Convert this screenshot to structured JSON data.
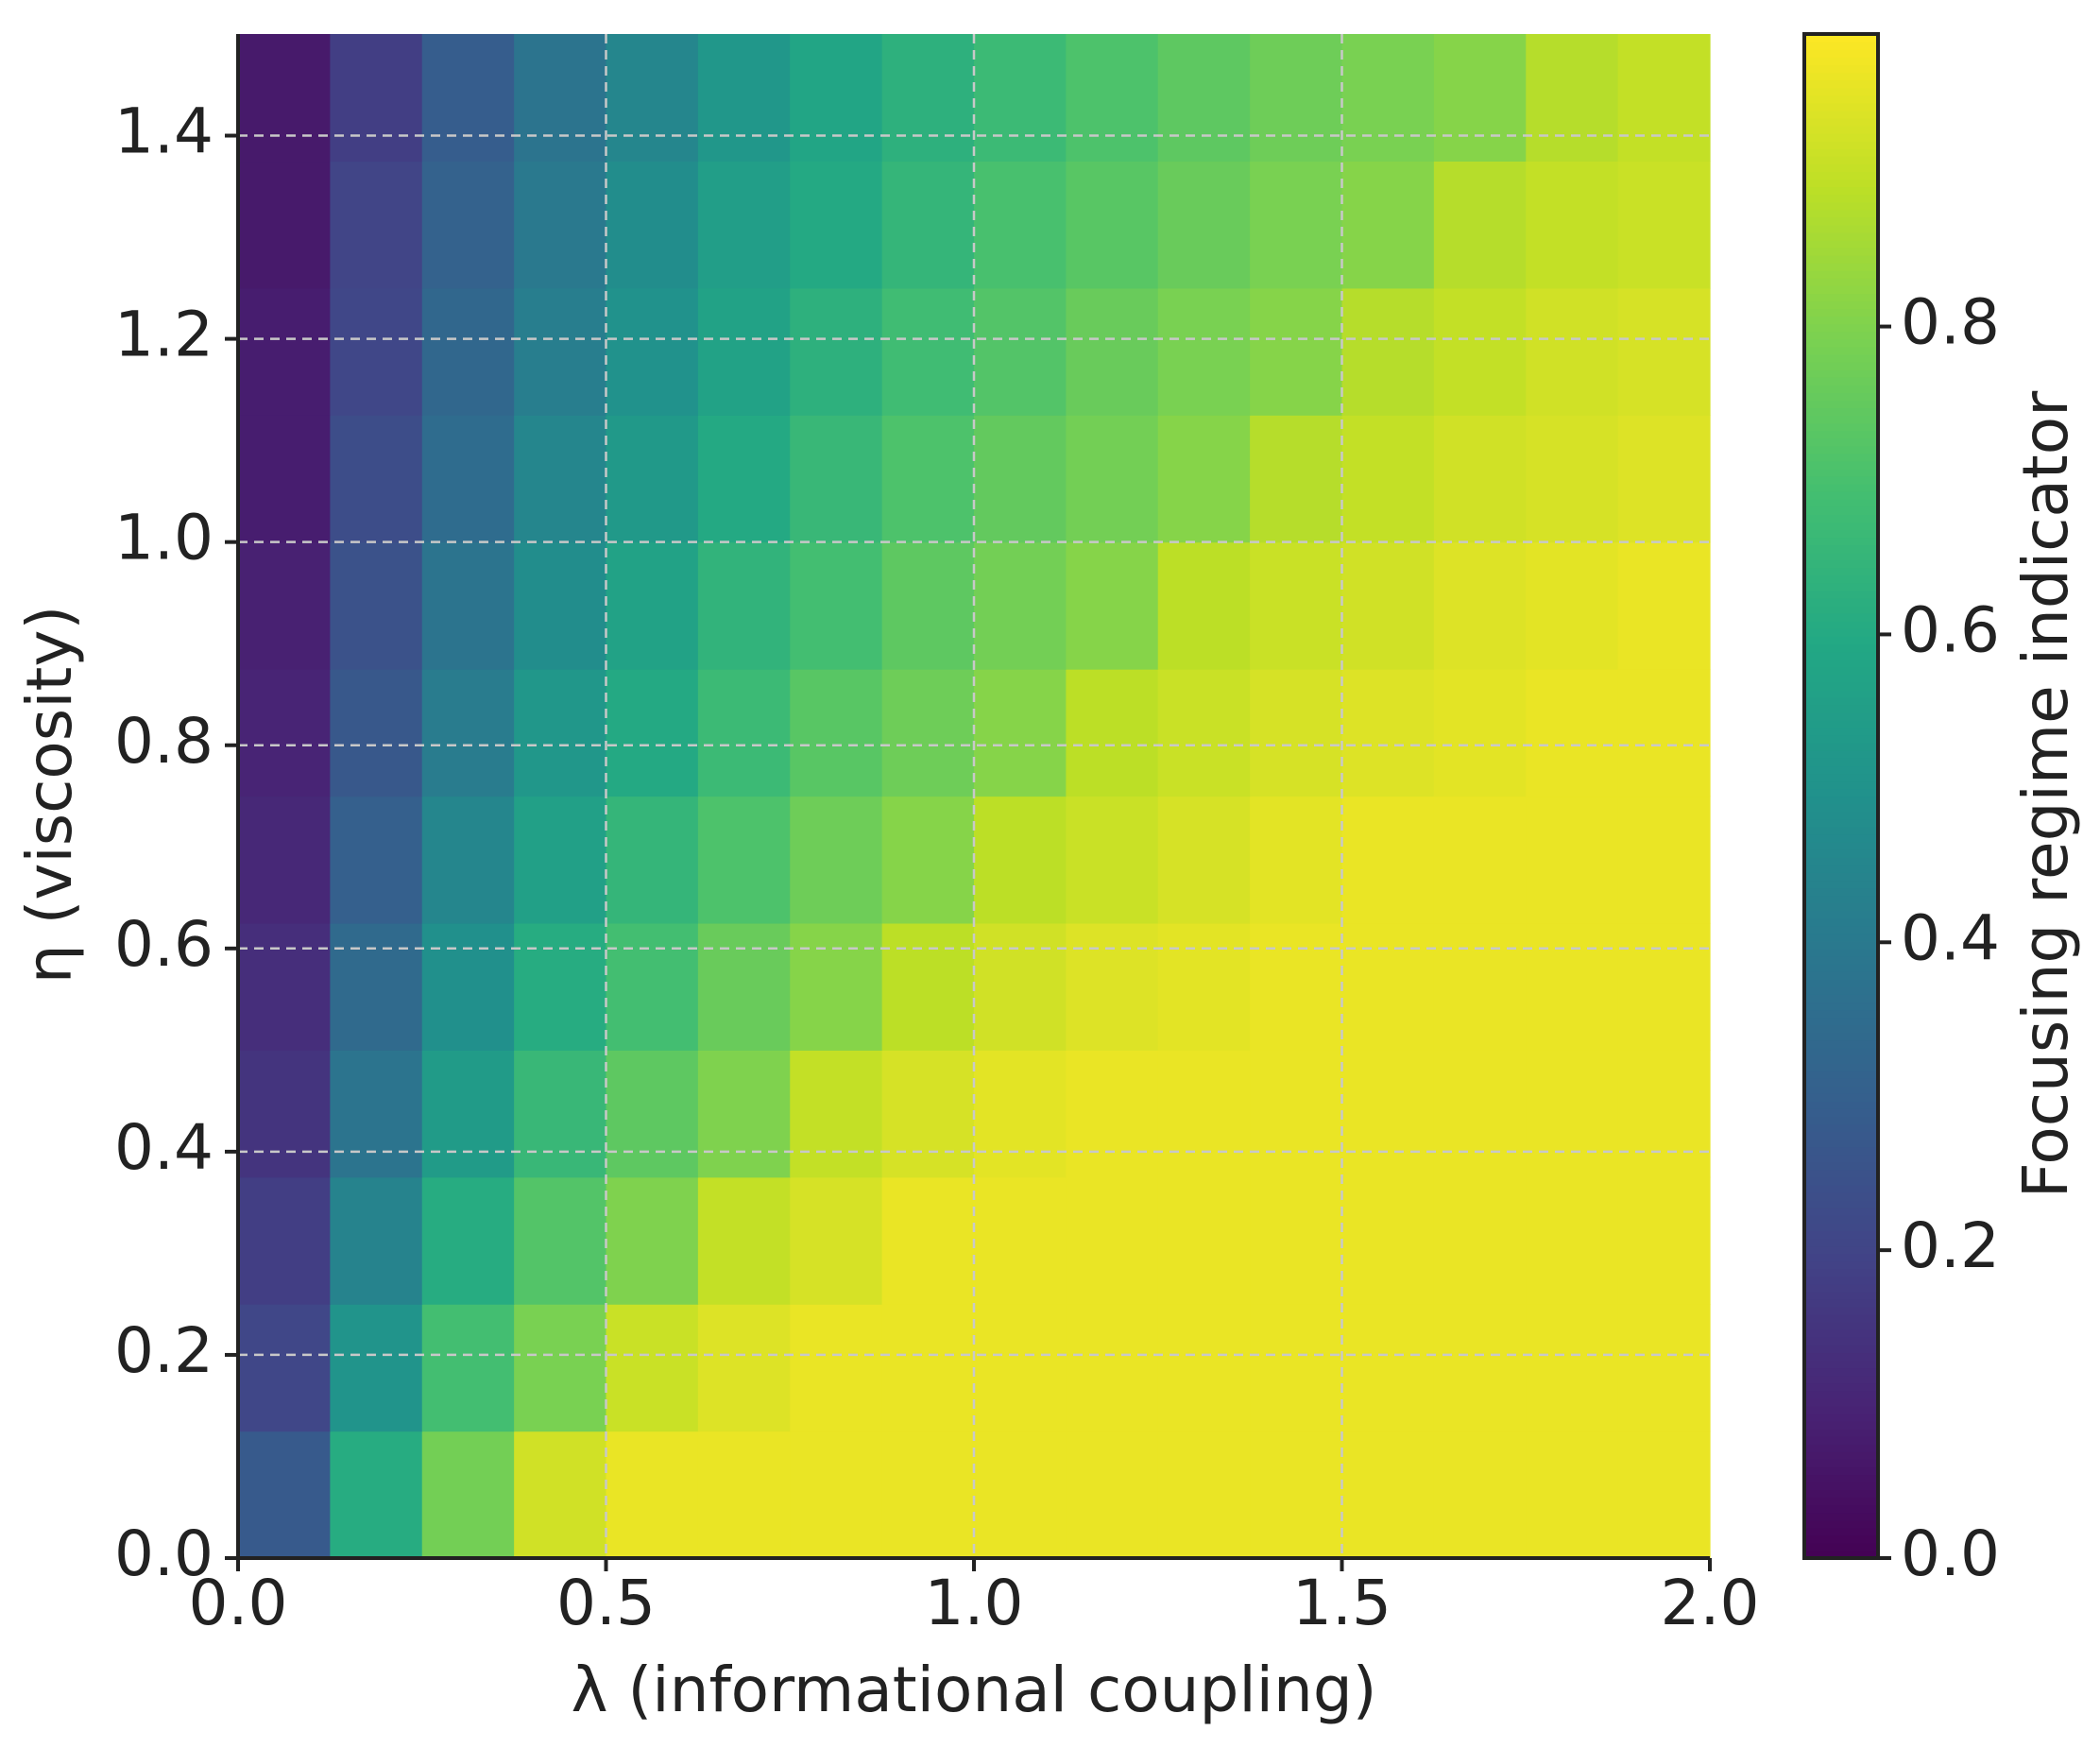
{
  "chart_data": {
    "type": "heatmap",
    "x_label": "λ (informational coupling)",
    "y_label": "η (viscosity)",
    "colorbar_label": "Focusing regime indicator",
    "colormap": "viridis",
    "clim": [
      0,
      0.99
    ],
    "xlim": [
      0,
      2
    ],
    "ylim": [
      0,
      1.5
    ],
    "xticks": [
      {
        "value": 0,
        "label": "0.0"
      },
      0.5,
      {
        "value": 1,
        "label": "1.0"
      },
      1.5,
      {
        "value": 2,
        "label": "2.0"
      }
    ],
    "yticks": [
      {
        "value": 0,
        "label": "0.0"
      },
      0.2,
      0.4,
      0.6,
      0.8,
      {
        "value": 1,
        "label": "1.0"
      },
      1.2,
      1.4
    ],
    "cticks": [
      {
        "value": 0,
        "label": "0.0"
      },
      0.2,
      0.4,
      0.6,
      0.8
    ],
    "grid": true,
    "x": [
      0.0625,
      0.1875,
      0.3125,
      0.4375,
      0.5625,
      0.6875,
      0.8125,
      0.9375,
      1.0625,
      1.1875,
      1.3125,
      1.4375,
      1.5625,
      1.6875,
      1.8125,
      1.9375
    ],
    "y": [
      0.0625,
      0.1875,
      0.3125,
      0.4375,
      0.5625,
      0.6875,
      0.8125,
      0.9375,
      1.0625,
      1.1875,
      1.3125,
      1.4375
    ],
    "z": [
      [
        0.28,
        0.61,
        0.78,
        0.92,
        0.96,
        0.96,
        0.96,
        0.96,
        0.96,
        0.96,
        0.96,
        0.96,
        0.96,
        0.96,
        0.96,
        0.96
      ],
      [
        0.21,
        0.51,
        0.69,
        0.79,
        0.91,
        0.94,
        0.96,
        0.96,
        0.96,
        0.96,
        0.96,
        0.96,
        0.96,
        0.96,
        0.96,
        0.96
      ],
      [
        0.18,
        0.44,
        0.61,
        0.72,
        0.8,
        0.9,
        0.93,
        0.96,
        0.96,
        0.96,
        0.96,
        0.96,
        0.96,
        0.96,
        0.96,
        0.96
      ],
      [
        0.15,
        0.38,
        0.54,
        0.66,
        0.74,
        0.8,
        0.9,
        0.93,
        0.95,
        0.96,
        0.96,
        0.96,
        0.96,
        0.96,
        0.96,
        0.96
      ],
      [
        0.13,
        0.34,
        0.49,
        0.61,
        0.69,
        0.76,
        0.81,
        0.89,
        0.92,
        0.94,
        0.95,
        0.96,
        0.96,
        0.96,
        0.96,
        0.96
      ],
      [
        0.11,
        0.3,
        0.45,
        0.56,
        0.65,
        0.71,
        0.77,
        0.81,
        0.89,
        0.91,
        0.93,
        0.95,
        0.96,
        0.96,
        0.96,
        0.96
      ],
      [
        0.1,
        0.27,
        0.41,
        0.52,
        0.6,
        0.67,
        0.73,
        0.77,
        0.81,
        0.89,
        0.91,
        0.93,
        0.94,
        0.95,
        0.96,
        0.96
      ],
      [
        0.09,
        0.25,
        0.38,
        0.48,
        0.57,
        0.64,
        0.69,
        0.74,
        0.78,
        0.81,
        0.89,
        0.91,
        0.92,
        0.94,
        0.95,
        0.96
      ],
      [
        0.08,
        0.23,
        0.35,
        0.45,
        0.53,
        0.6,
        0.66,
        0.71,
        0.75,
        0.78,
        0.81,
        0.88,
        0.9,
        0.92,
        0.93,
        0.94
      ],
      [
        0.08,
        0.21,
        0.33,
        0.42,
        0.5,
        0.57,
        0.63,
        0.68,
        0.72,
        0.76,
        0.79,
        0.81,
        0.88,
        0.9,
        0.92,
        0.93
      ],
      [
        0.07,
        0.2,
        0.31,
        0.4,
        0.48,
        0.55,
        0.6,
        0.65,
        0.7,
        0.73,
        0.76,
        0.79,
        0.81,
        0.88,
        0.9,
        0.91
      ],
      [
        0.07,
        0.18,
        0.29,
        0.38,
        0.45,
        0.52,
        0.58,
        0.63,
        0.67,
        0.71,
        0.74,
        0.77,
        0.79,
        0.81,
        0.88,
        0.9
      ]
    ]
  }
}
